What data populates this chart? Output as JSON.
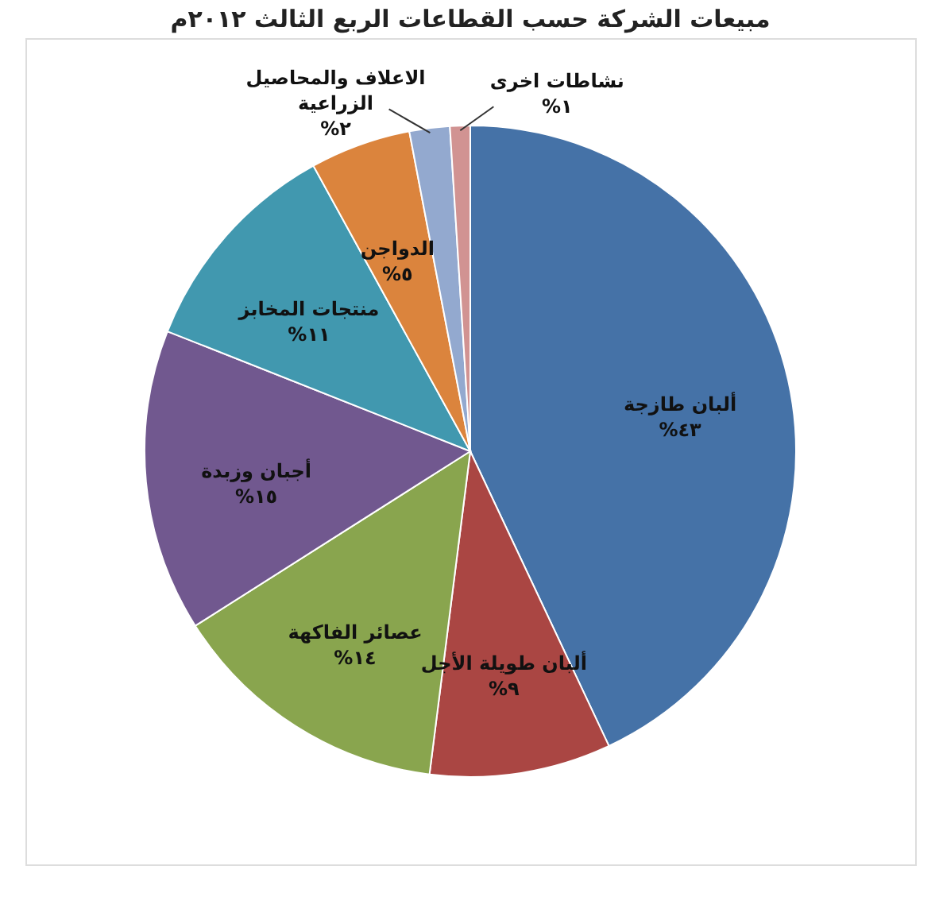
{
  "chart_data": {
    "type": "pie",
    "title": "مبيعات الشركة حسب القطاعات الربع الثالث ٢٠١٢م",
    "categories": [
      "ألبان طازجة",
      "ألبان طويلة الأجل",
      "عصائر الفاكهة",
      "أجبان وزبدة",
      "منتجات المخابز",
      "الدواجن",
      "الاعلاف والمحاصيل الزراعية",
      "نشاطات اخرى"
    ],
    "values": [
      43,
      9,
      14,
      15,
      11,
      5,
      2,
      1
    ],
    "colors": [
      "#4572a7",
      "#aa4643",
      "#89a54e",
      "#71588f",
      "#4198af",
      "#db843d",
      "#93a9cf",
      "#d19392"
    ],
    "value_labels": [
      "%٤٣",
      "%٩",
      "%١٤",
      "%١٥",
      "%١١",
      "%٥",
      "%٢",
      "%١"
    ],
    "legend": false
  }
}
